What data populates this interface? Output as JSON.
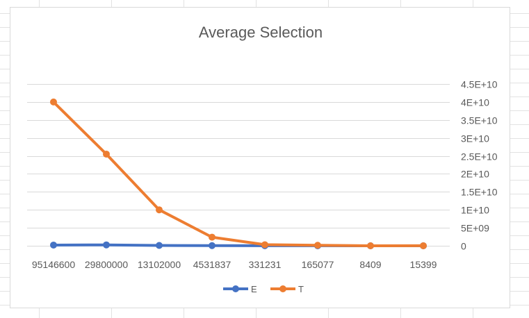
{
  "chart_data": {
    "type": "line",
    "title": "Average Selection",
    "xlabel": "",
    "ylabel": "",
    "categories": [
      "95146600",
      "29800000",
      "13102000",
      "4531837",
      "331231",
      "165077",
      "8409",
      "15399"
    ],
    "series": [
      {
        "name": "E",
        "color": "#4472c4",
        "values": [
          200000000,
          250000000,
          100000000,
          50000000,
          20000000,
          10000000,
          1000000,
          2000000
        ]
      },
      {
        "name": "T",
        "color": "#ed7d31",
        "values": [
          40000000000,
          25500000000,
          10000000000,
          2400000000,
          300000000,
          150000000,
          5000000,
          10000000
        ]
      }
    ],
    "ylim": [
      0,
      45000000000
    ],
    "yticks": [
      {
        "value": 0,
        "label": "0"
      },
      {
        "value": 5000000000,
        "label": "5E+09"
      },
      {
        "value": 10000000000,
        "label": "1E+10"
      },
      {
        "value": 15000000000,
        "label": "1.5E+10"
      },
      {
        "value": 20000000000,
        "label": "2E+10"
      },
      {
        "value": 25000000000,
        "label": "2.5E+10"
      },
      {
        "value": 30000000000,
        "label": "3E+10"
      },
      {
        "value": 35000000000,
        "label": "3.5E+10"
      },
      {
        "value": 40000000000,
        "label": "4E+10"
      },
      {
        "value": 45000000000,
        "label": "4.5E+10"
      }
    ],
    "y_axis_side": "right",
    "grid": true,
    "legend_position": "bottom",
    "gridline_color": "#d9d9d9",
    "axis_label_color": "#595959"
  }
}
